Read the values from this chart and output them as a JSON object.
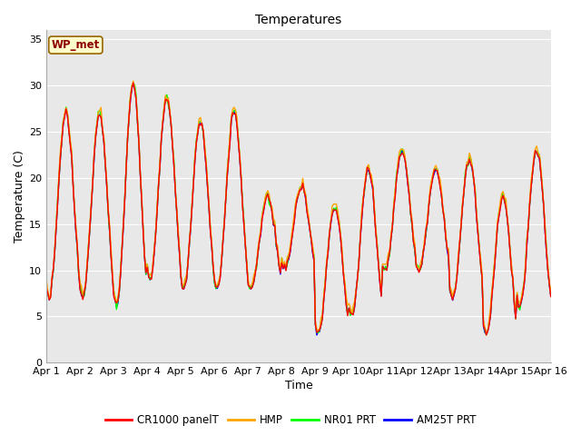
{
  "title": "Temperatures",
  "xlabel": "Time",
  "ylabel": "Temperature (C)",
  "annotation": "WP_met",
  "ylim": [
    0,
    36
  ],
  "yticks": [
    0,
    5,
    10,
    15,
    20,
    25,
    30,
    35
  ],
  "x_labels": [
    "Apr 1",
    "Apr 2",
    "Apr 3",
    "Apr 4",
    "Apr 5",
    "Apr 6",
    "Apr 7",
    "Apr 8",
    "Apr 9",
    "Apr 9",
    "Apr 10",
    "Apr 11",
    "Apr 12",
    "Apr 13",
    "Apr 14",
    "Apr 15",
    "Apr 16"
  ],
  "series_colors": [
    "red",
    "orange",
    "lime",
    "blue"
  ],
  "series_labels": [
    "CR1000 panelT",
    "HMP",
    "NR01 PRT",
    "AM25T PRT"
  ],
  "line_width": 1.0,
  "plot_bg_color": "#e8e8e8",
  "grid_color": "white",
  "n_points": 361,
  "figsize": [
    6.4,
    4.8
  ],
  "dpi": 100
}
